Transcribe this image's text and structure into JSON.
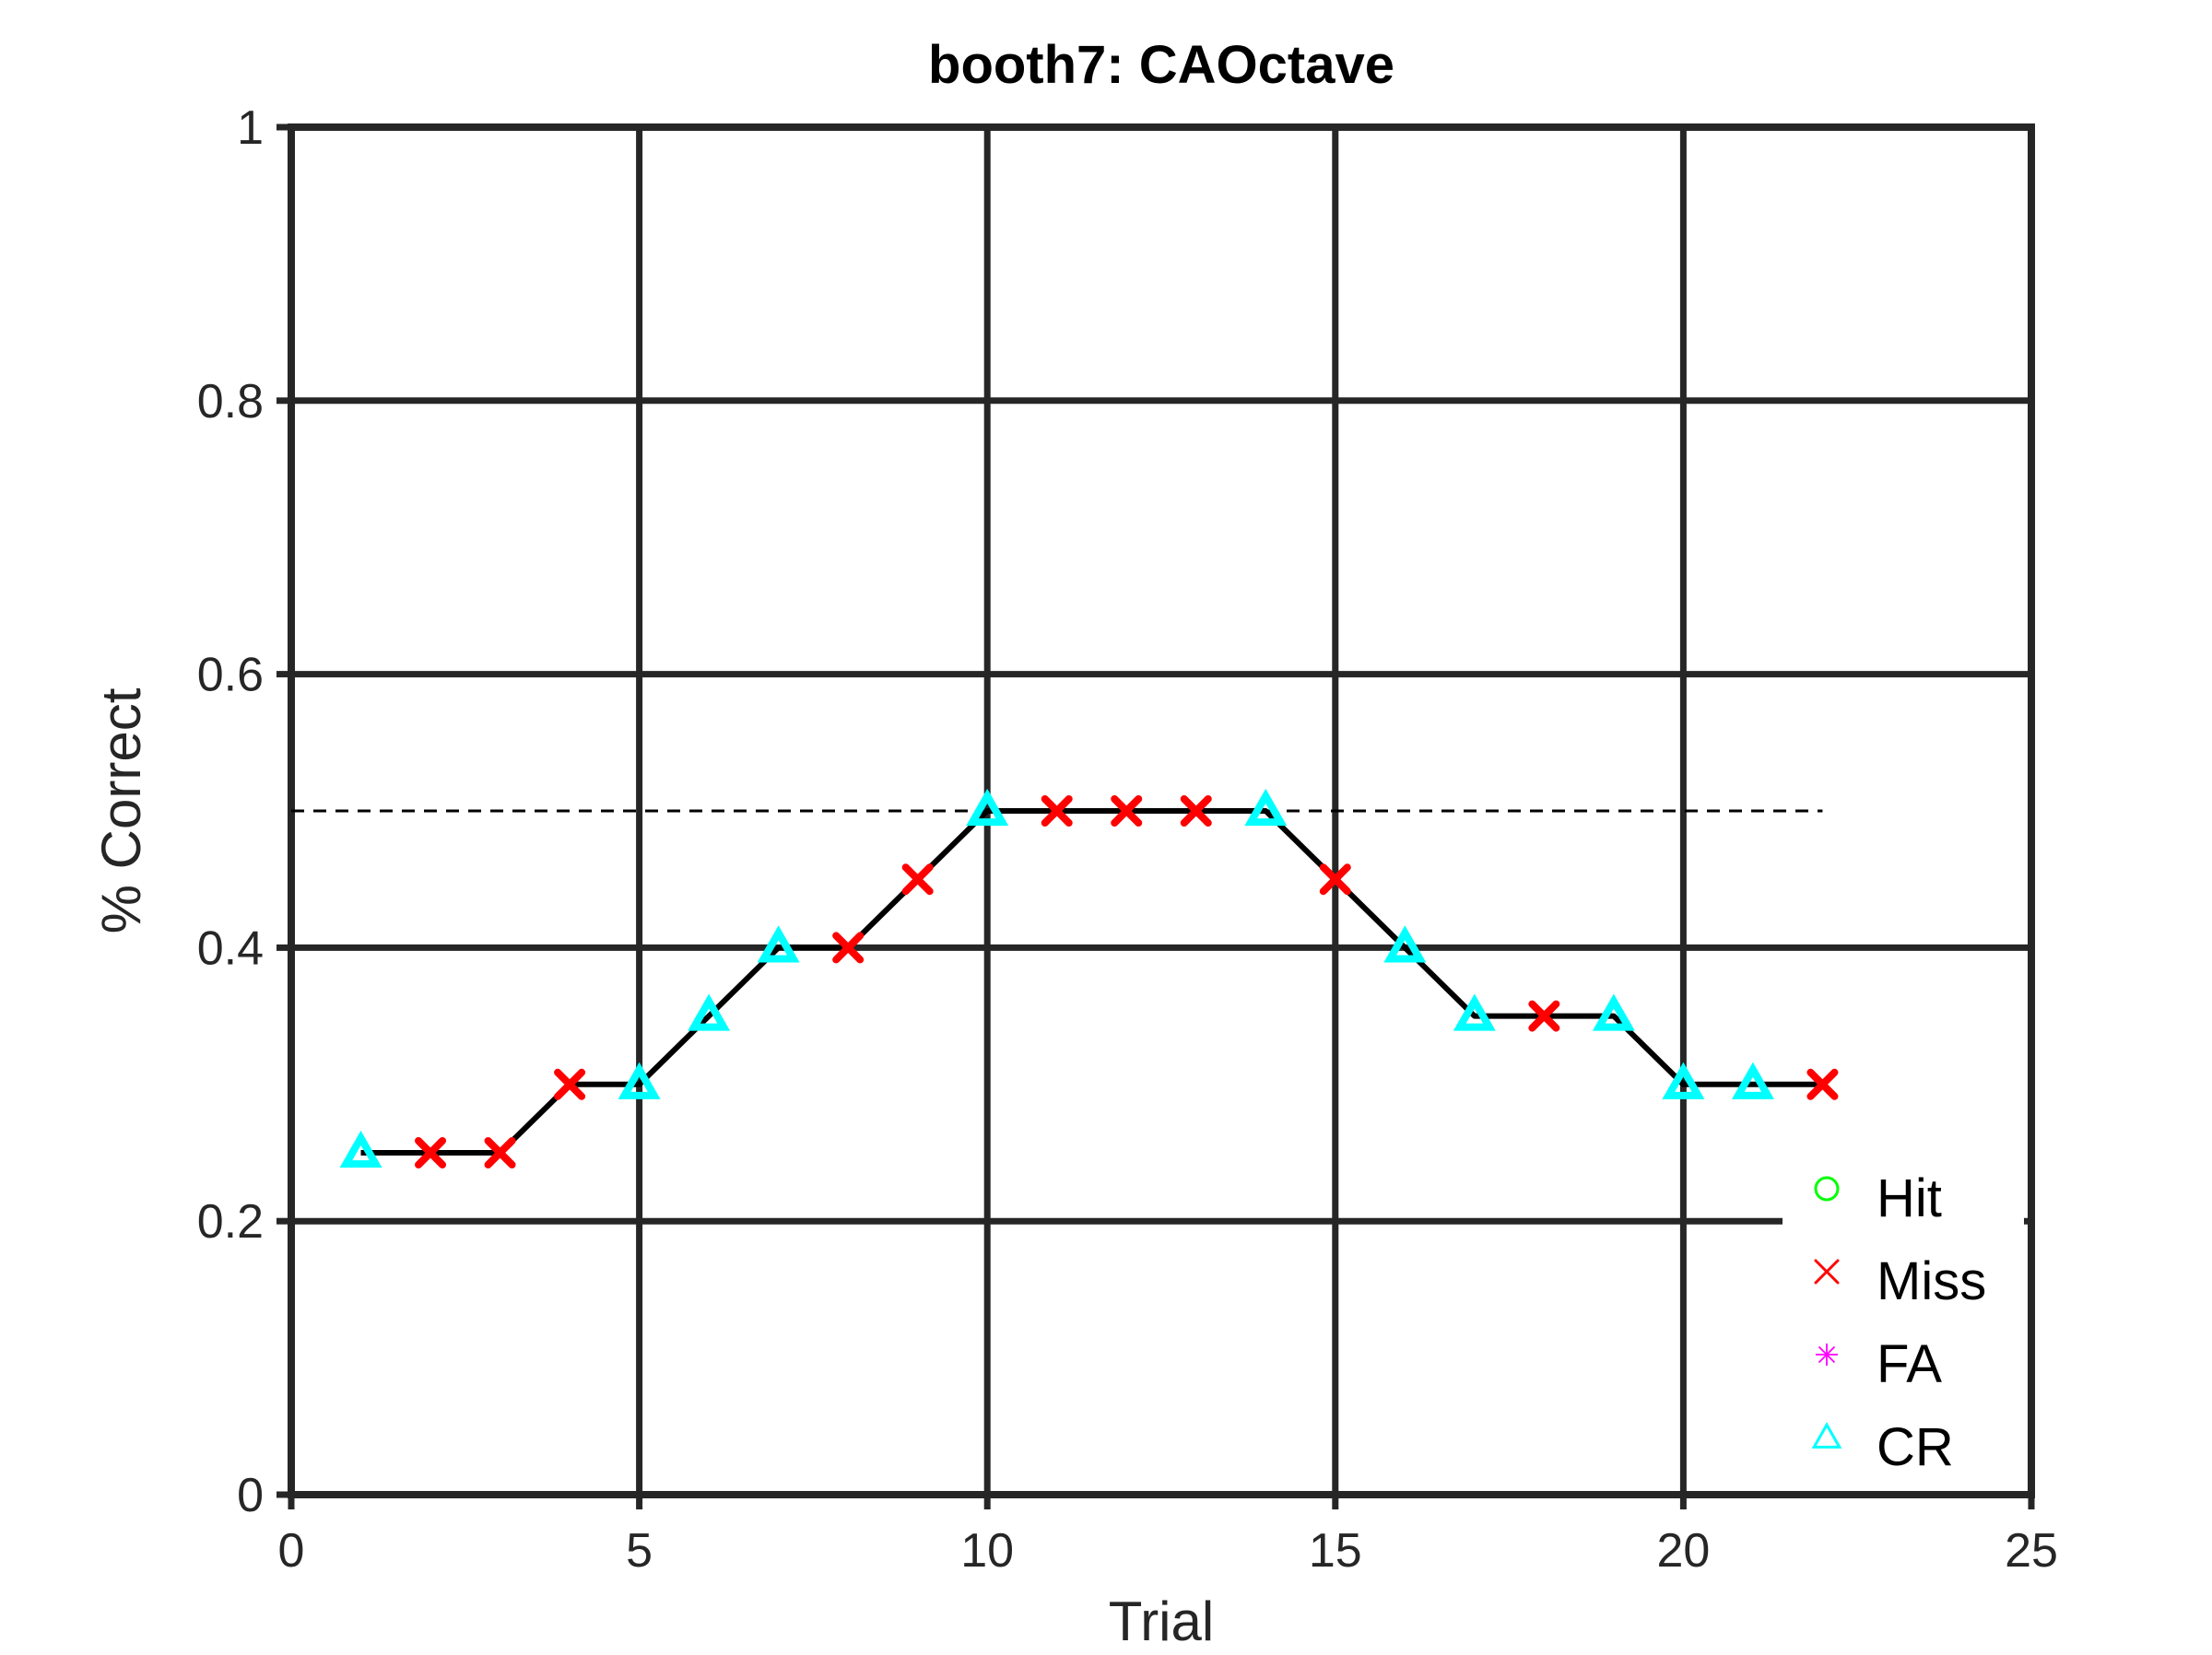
{
  "chart_data": {
    "type": "line",
    "title": "booth7: CAOctave",
    "xlabel": "Trial",
    "ylabel": "% Correct",
    "xlim": [
      0,
      25
    ],
    "ylim": [
      0,
      1
    ],
    "xticks": [
      "0",
      "5",
      "10",
      "15",
      "20",
      "25"
    ],
    "yticks": [
      "0",
      "0.2",
      "0.4",
      "0.6",
      "0.8",
      "1"
    ],
    "grid": true,
    "reference_line": {
      "y": 0.5,
      "x": [
        0,
        22
      ],
      "style": "dashed"
    },
    "line_color": "#000000",
    "points": [
      {
        "x": 1,
        "y": 0.25,
        "outcome": "CR"
      },
      {
        "x": 2,
        "y": 0.25,
        "outcome": "Miss"
      },
      {
        "x": 3,
        "y": 0.25,
        "outcome": "Miss"
      },
      {
        "x": 4,
        "y": 0.3,
        "outcome": "Miss"
      },
      {
        "x": 5,
        "y": 0.3,
        "outcome": "CR"
      },
      {
        "x": 6,
        "y": 0.35,
        "outcome": "CR"
      },
      {
        "x": 7,
        "y": 0.4,
        "outcome": "CR"
      },
      {
        "x": 8,
        "y": 0.4,
        "outcome": "Miss"
      },
      {
        "x": 9,
        "y": 0.45,
        "outcome": "Miss"
      },
      {
        "x": 10,
        "y": 0.5,
        "outcome": "CR"
      },
      {
        "x": 11,
        "y": 0.5,
        "outcome": "Miss"
      },
      {
        "x": 12,
        "y": 0.5,
        "outcome": "Miss"
      },
      {
        "x": 13,
        "y": 0.5,
        "outcome": "Miss"
      },
      {
        "x": 14,
        "y": 0.5,
        "outcome": "CR"
      },
      {
        "x": 15,
        "y": 0.45,
        "outcome": "Miss"
      },
      {
        "x": 16,
        "y": 0.4,
        "outcome": "CR"
      },
      {
        "x": 17,
        "y": 0.35,
        "outcome": "CR"
      },
      {
        "x": 18,
        "y": 0.35,
        "outcome": "Miss"
      },
      {
        "x": 19,
        "y": 0.35,
        "outcome": "CR"
      },
      {
        "x": 20,
        "y": 0.3,
        "outcome": "CR"
      },
      {
        "x": 21,
        "y": 0.3,
        "outcome": "CR"
      },
      {
        "x": 22,
        "y": 0.3,
        "outcome": "Miss"
      }
    ],
    "legend": {
      "position": "bottom-right",
      "entries": [
        {
          "label": "Hit",
          "marker": "circle",
          "color": "#00ff00"
        },
        {
          "label": "Miss",
          "marker": "x",
          "color": "#ff0000"
        },
        {
          "label": "FA",
          "marker": "asterisk",
          "color": "#ff00ff"
        },
        {
          "label": "CR",
          "marker": "triangle",
          "color": "#00ffff"
        }
      ]
    }
  }
}
